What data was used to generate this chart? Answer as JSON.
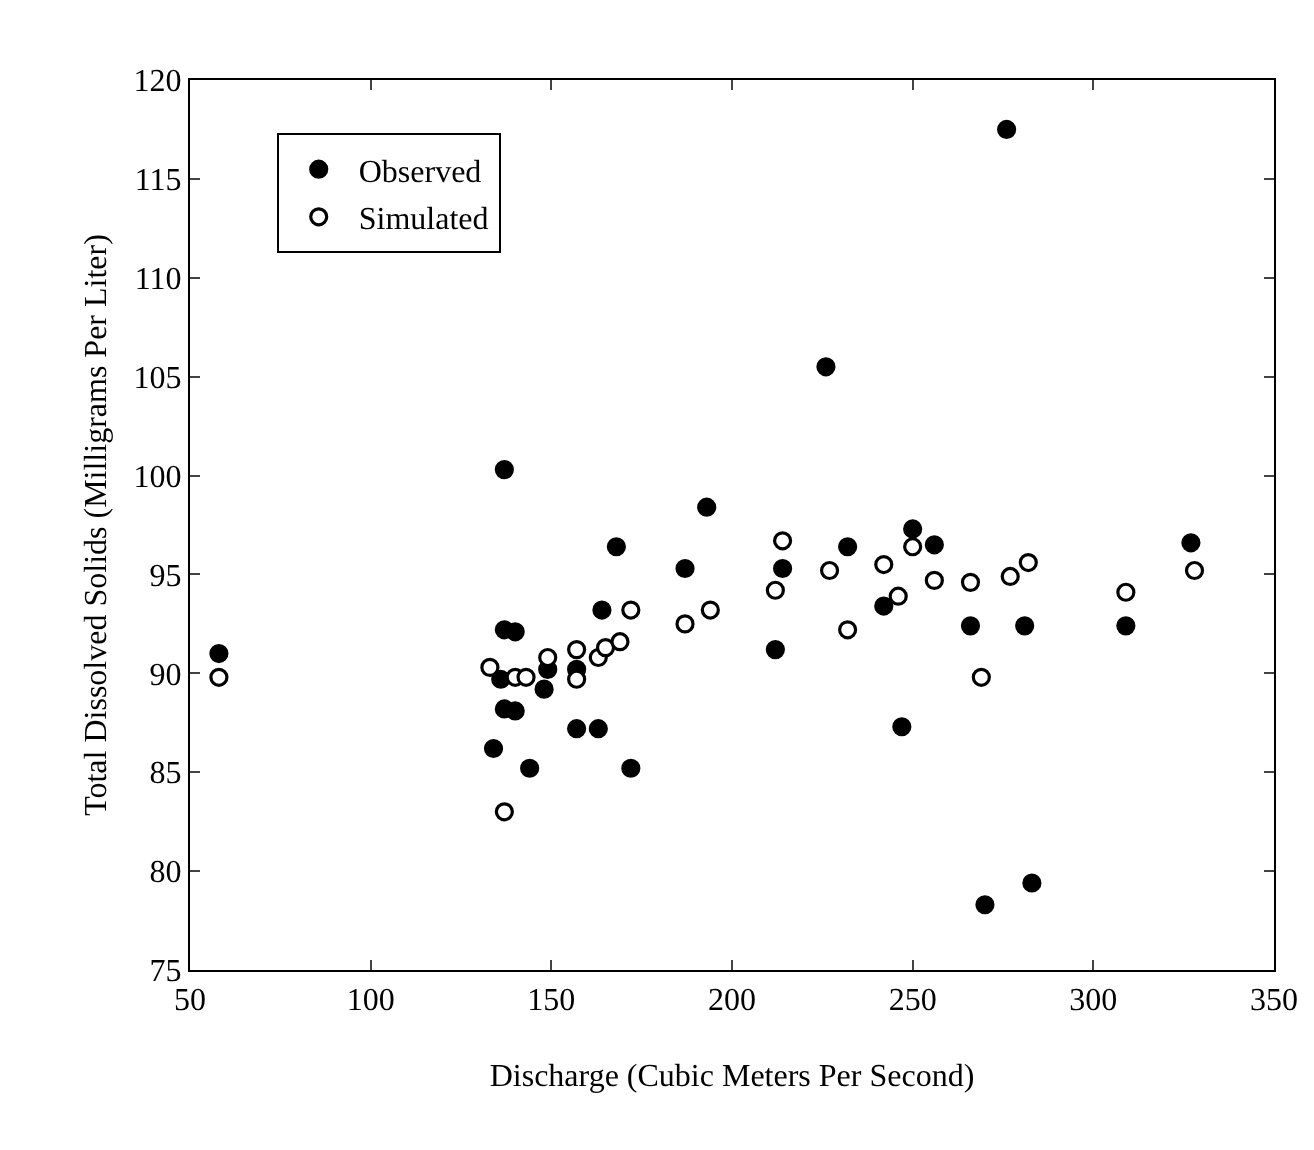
{
  "chart_data": {
    "type": "scatter",
    "xlabel": "Discharge (Cubic Meters Per Second)",
    "ylabel": "Total Dissolved Solids (Milligrams Per Liter)",
    "xlim": [
      50,
      350
    ],
    "xticks": [
      50,
      100,
      150,
      200,
      250,
      300,
      350
    ],
    "ylim": [
      75,
      120
    ],
    "yticks": [
      75,
      80,
      85,
      90,
      95,
      100,
      105,
      110,
      115,
      120
    ],
    "grid": false,
    "legend": "top left",
    "marker": "circle",
    "series": [
      {
        "name": "Observed",
        "color": "#000000",
        "x": [
          58,
          137,
          140,
          136,
          137,
          140,
          134,
          144,
          148,
          149,
          157,
          157,
          163,
          164,
          168,
          172,
          137,
          276,
          226,
          193,
          187,
          214,
          212,
          232,
          242,
          250,
          256,
          247,
          266,
          281,
          270,
          283,
          309,
          327
        ],
        "values": [
          91.0,
          92.2,
          92.1,
          89.7,
          88.2,
          88.1,
          86.2,
          85.2,
          89.2,
          90.2,
          90.2,
          87.2,
          87.2,
          93.2,
          96.4,
          85.2,
          100.3,
          117.5,
          105.5,
          98.4,
          95.3,
          95.3,
          91.2,
          96.4,
          93.4,
          97.3,
          96.5,
          87.3,
          92.4,
          92.4,
          78.3,
          79.4,
          92.4,
          96.6
        ]
      },
      {
        "name": "Simulated",
        "color": "#ffffff",
        "x": [
          58,
          133,
          140,
          143,
          149,
          157,
          157,
          163,
          165,
          169,
          172,
          137,
          187,
          194,
          212,
          214,
          227,
          232,
          242,
          246,
          250,
          256,
          266,
          269,
          277,
          282,
          309,
          328
        ],
        "values": [
          89.8,
          90.3,
          89.8,
          89.8,
          90.8,
          91.2,
          89.7,
          90.8,
          91.3,
          91.6,
          93.2,
          83.0,
          92.5,
          93.2,
          94.2,
          96.7,
          95.2,
          92.2,
          95.5,
          93.9,
          96.4,
          94.7,
          94.6,
          89.8,
          94.9,
          95.6,
          94.1,
          95.2
        ]
      }
    ]
  }
}
